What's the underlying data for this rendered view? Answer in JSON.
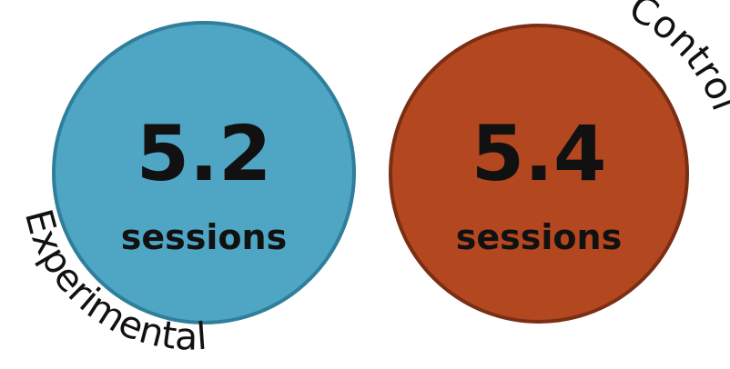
{
  "groups": [
    {
      "label": "Experimental",
      "value": "5.2",
      "unit": "sessions",
      "fill_color": "#4fa6c4",
      "stroke_color": "#2f7f9a"
    },
    {
      "label": "Control",
      "value": "5.4",
      "unit": "sessions",
      "fill_color": "#b34720",
      "stroke_color": "#7a2e14"
    }
  ]
}
